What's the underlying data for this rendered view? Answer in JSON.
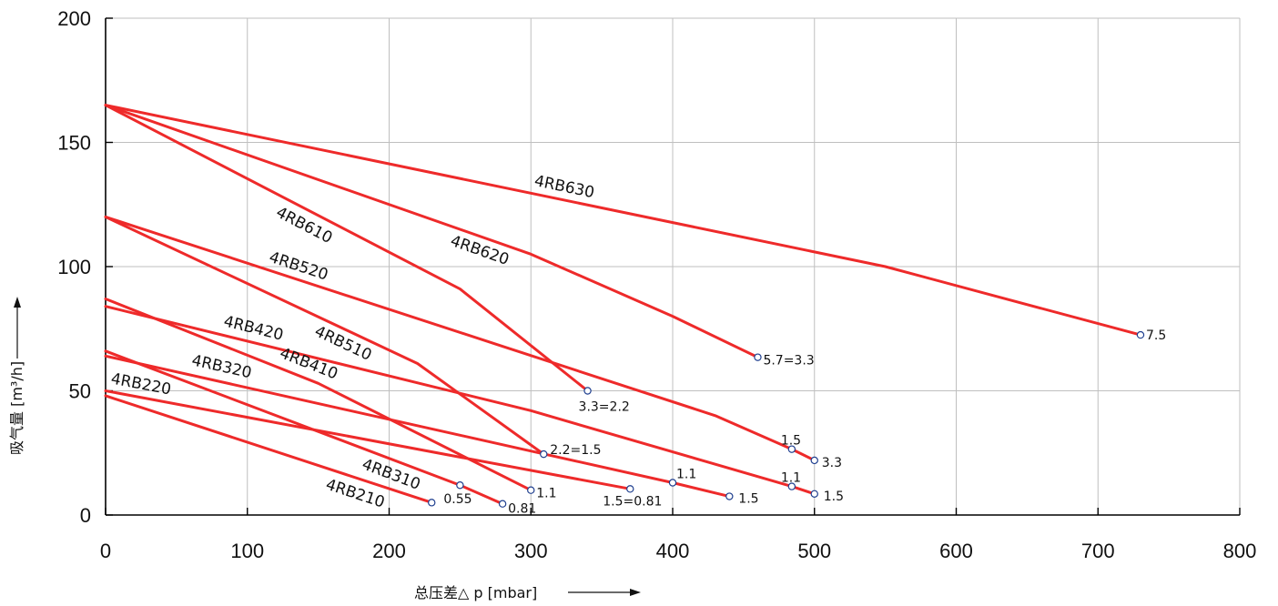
{
  "chart_data": {
    "type": "line",
    "title": "",
    "xlabel": "总压差△ p [mbar]",
    "ylabel": "吸气量 [m³/h]",
    "xlim": [
      0,
      800
    ],
    "ylim": [
      0,
      200
    ],
    "x_ticks": [
      0,
      100,
      200,
      300,
      400,
      500,
      600,
      700,
      800
    ],
    "y_ticks": [
      0,
      50,
      100,
      150,
      200
    ],
    "grid": true,
    "line_color": "#ee2a2a",
    "series": [
      {
        "name": "4RB630",
        "points": [
          [
            0,
            165
          ],
          [
            550,
            100
          ],
          [
            730,
            72.5
          ]
        ],
        "end_label": "7.5"
      },
      {
        "name": "4RB620",
        "points": [
          [
            0,
            165
          ],
          [
            300,
            105
          ],
          [
            400,
            80
          ],
          [
            460,
            63.5
          ]
        ],
        "end_label": "5.7=3.3"
      },
      {
        "name": "4RB610",
        "points": [
          [
            0,
            165
          ],
          [
            250,
            91
          ],
          [
            340,
            50
          ]
        ],
        "end_label": "3.3=2.2"
      },
      {
        "name": "4RB520",
        "points": [
          [
            0,
            120
          ],
          [
            430,
            40
          ],
          [
            484,
            26.5
          ],
          [
            500,
            22
          ]
        ],
        "end_label": "3.3",
        "mid_marker": [
          484,
          26.5
        ],
        "mid_label": "1.5"
      },
      {
        "name": "4RB510",
        "points": [
          [
            0,
            120
          ],
          [
            220,
            61
          ],
          [
            309,
            24.5
          ]
        ],
        "end_label": "2.2=1.5"
      },
      {
        "name": "4RB420",
        "points": [
          [
            0,
            84
          ],
          [
            300,
            42
          ],
          [
            484,
            11.5
          ],
          [
            500,
            8.5
          ]
        ],
        "end_label": "1.5",
        "mid_marker": [
          484,
          11.5
        ],
        "mid_label": "1.1"
      },
      {
        "name": "4RB410",
        "points": [
          [
            0,
            87
          ],
          [
            150,
            53
          ],
          [
            300,
            10
          ]
        ],
        "end_label": "1.1"
      },
      {
        "name": "4RB320",
        "points": [
          [
            0,
            64
          ],
          [
            400,
            13
          ],
          [
            440,
            7.5
          ]
        ],
        "end_label": "1.5",
        "mid_marker": [
          400,
          13
        ],
        "mid_label": "1.1"
      },
      {
        "name": "4RB310",
        "points": [
          [
            0,
            66
          ],
          [
            250,
            12
          ],
          [
            280,
            4.5
          ]
        ],
        "end_label": "0.81",
        "mid_marker": [
          250,
          12
        ],
        "mid_label": "0.55"
      },
      {
        "name": "4RB220",
        "points": [
          [
            0,
            50
          ],
          [
            370,
            10.5
          ]
        ],
        "end_label": "1.5=0.81"
      },
      {
        "name": "4RB210",
        "points": [
          [
            0,
            48
          ],
          [
            230,
            5
          ]
        ],
        "end_label": ""
      }
    ]
  }
}
